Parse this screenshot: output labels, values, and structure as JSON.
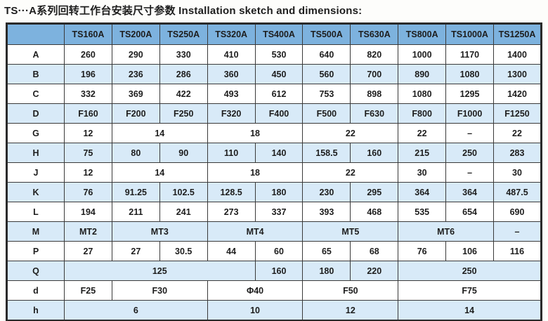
{
  "title": "TS···A系列回转工作台安装尺寸参数 Installation sketch and dimensions:",
  "colors": {
    "header_bg": "#7db2de",
    "stripe_bg": "#d8eaf8",
    "white_bg": "#ffffff",
    "border": "#3a3a3a",
    "outer_border": "#2a2a2a",
    "text": "#1d1d1d"
  },
  "table": {
    "columns": [
      "",
      "TS160A",
      "TS200A",
      "TS250A",
      "TS320A",
      "TS400A",
      "TS500A",
      "TS630A",
      "TS800A",
      "TS1000A",
      "TS1250A"
    ],
    "rows": [
      {
        "label": "A",
        "cells": [
          {
            "text": "260",
            "span": 1
          },
          {
            "text": "290",
            "span": 1
          },
          {
            "text": "330",
            "span": 1
          },
          {
            "text": "410",
            "span": 1
          },
          {
            "text": "530",
            "span": 1
          },
          {
            "text": "640",
            "span": 1
          },
          {
            "text": "820",
            "span": 1
          },
          {
            "text": "1000",
            "span": 1
          },
          {
            "text": "1170",
            "span": 1
          },
          {
            "text": "1400",
            "span": 1
          }
        ]
      },
      {
        "label": "B",
        "cells": [
          {
            "text": "196",
            "span": 1
          },
          {
            "text": "236",
            "span": 1
          },
          {
            "text": "286",
            "span": 1
          },
          {
            "text": "360",
            "span": 1
          },
          {
            "text": "450",
            "span": 1
          },
          {
            "text": "560",
            "span": 1
          },
          {
            "text": "700",
            "span": 1
          },
          {
            "text": "890",
            "span": 1
          },
          {
            "text": "1080",
            "span": 1
          },
          {
            "text": "1300",
            "span": 1
          }
        ]
      },
      {
        "label": "C",
        "cells": [
          {
            "text": "332",
            "span": 1
          },
          {
            "text": "369",
            "span": 1
          },
          {
            "text": "422",
            "span": 1
          },
          {
            "text": "493",
            "span": 1
          },
          {
            "text": "612",
            "span": 1
          },
          {
            "text": "753",
            "span": 1
          },
          {
            "text": "898",
            "span": 1
          },
          {
            "text": "1080",
            "span": 1
          },
          {
            "text": "1295",
            "span": 1
          },
          {
            "text": "1420",
            "span": 1
          }
        ]
      },
      {
        "label": "D",
        "cells": [
          {
            "text": "F160",
            "span": 1
          },
          {
            "text": "F200",
            "span": 1
          },
          {
            "text": "F250",
            "span": 1
          },
          {
            "text": "F320",
            "span": 1
          },
          {
            "text": "F400",
            "span": 1
          },
          {
            "text": "F500",
            "span": 1
          },
          {
            "text": "F630",
            "span": 1
          },
          {
            "text": "F800",
            "span": 1
          },
          {
            "text": "F1000",
            "span": 1
          },
          {
            "text": "F1250",
            "span": 1
          }
        ]
      },
      {
        "label": "G",
        "cells": [
          {
            "text": "12",
            "span": 1
          },
          {
            "text": "14",
            "span": 2
          },
          {
            "text": "18",
            "span": 2
          },
          {
            "text": "22",
            "span": 2
          },
          {
            "text": "22",
            "span": 1
          },
          {
            "text": "–",
            "span": 1
          },
          {
            "text": "22",
            "span": 1
          }
        ]
      },
      {
        "label": "H",
        "cells": [
          {
            "text": "75",
            "span": 1
          },
          {
            "text": "80",
            "span": 1
          },
          {
            "text": "90",
            "span": 1
          },
          {
            "text": "110",
            "span": 1
          },
          {
            "text": "140",
            "span": 1
          },
          {
            "text": "158.5",
            "span": 1
          },
          {
            "text": "160",
            "span": 1
          },
          {
            "text": "215",
            "span": 1
          },
          {
            "text": "250",
            "span": 1
          },
          {
            "text": "283",
            "span": 1
          }
        ]
      },
      {
        "label": "J",
        "cells": [
          {
            "text": "12",
            "span": 1
          },
          {
            "text": "14",
            "span": 2
          },
          {
            "text": "18",
            "span": 2
          },
          {
            "text": "22",
            "span": 2
          },
          {
            "text": "30",
            "span": 1
          },
          {
            "text": "–",
            "span": 1
          },
          {
            "text": "30",
            "span": 1
          }
        ]
      },
      {
        "label": "K",
        "cells": [
          {
            "text": "76",
            "span": 1
          },
          {
            "text": "91.25",
            "span": 1
          },
          {
            "text": "102.5",
            "span": 1
          },
          {
            "text": "128.5",
            "span": 1
          },
          {
            "text": "180",
            "span": 1
          },
          {
            "text": "230",
            "span": 1
          },
          {
            "text": "295",
            "span": 1
          },
          {
            "text": "364",
            "span": 1
          },
          {
            "text": "364",
            "span": 1
          },
          {
            "text": "487.5",
            "span": 1
          }
        ]
      },
      {
        "label": "L",
        "cells": [
          {
            "text": "194",
            "span": 1
          },
          {
            "text": "211",
            "span": 1
          },
          {
            "text": "241",
            "span": 1
          },
          {
            "text": "273",
            "span": 1
          },
          {
            "text": "337",
            "span": 1
          },
          {
            "text": "393",
            "span": 1
          },
          {
            "text": "468",
            "span": 1
          },
          {
            "text": "535",
            "span": 1
          },
          {
            "text": "654",
            "span": 1
          },
          {
            "text": "690",
            "span": 1
          }
        ]
      },
      {
        "label": "M",
        "cells": [
          {
            "text": "MT2",
            "span": 1
          },
          {
            "text": "MT3",
            "span": 2
          },
          {
            "text": "MT4",
            "span": 2
          },
          {
            "text": "MT5",
            "span": 2
          },
          {
            "text": "MT6",
            "span": 2
          },
          {
            "text": "–",
            "span": 1
          }
        ]
      },
      {
        "label": "P",
        "cells": [
          {
            "text": "27",
            "span": 1
          },
          {
            "text": "27",
            "span": 1
          },
          {
            "text": "30.5",
            "span": 1
          },
          {
            "text": "44",
            "span": 1
          },
          {
            "text": "60",
            "span": 1
          },
          {
            "text": "65",
            "span": 1
          },
          {
            "text": "68",
            "span": 1
          },
          {
            "text": "76",
            "span": 1
          },
          {
            "text": "106",
            "span": 1
          },
          {
            "text": "116",
            "span": 1
          }
        ]
      },
      {
        "label": "Q",
        "cells": [
          {
            "text": "125",
            "span": 4
          },
          {
            "text": "160",
            "span": 1
          },
          {
            "text": "180",
            "span": 1
          },
          {
            "text": "220",
            "span": 1
          },
          {
            "text": "250",
            "span": 3
          }
        ]
      },
      {
        "label": "d",
        "cells": [
          {
            "text": "F25",
            "span": 1
          },
          {
            "text": "F30",
            "span": 2
          },
          {
            "text": "Φ40",
            "span": 2
          },
          {
            "text": "F50",
            "span": 2
          },
          {
            "text": "F75",
            "span": 3
          }
        ]
      },
      {
        "label": "h",
        "cells": [
          {
            "text": "6",
            "span": 3
          },
          {
            "text": "10",
            "span": 2
          },
          {
            "text": "12",
            "span": 2
          },
          {
            "text": "14",
            "span": 3
          }
        ]
      }
    ]
  }
}
